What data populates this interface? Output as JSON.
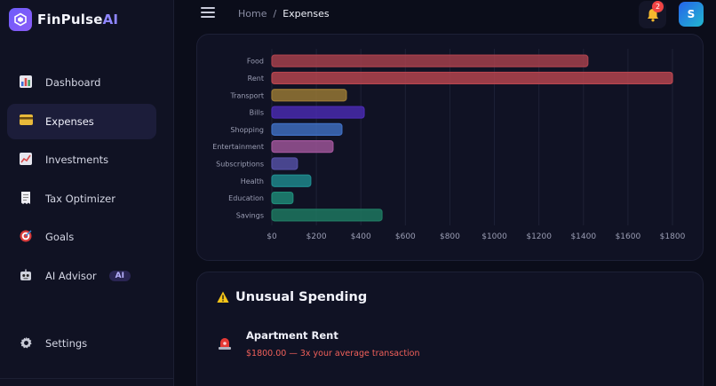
{
  "brand": {
    "name": "FinPulse",
    "suffix": "AI"
  },
  "sidebar": {
    "items": [
      {
        "label": "Dashboard",
        "icon": "bar-chart-icon"
      },
      {
        "label": "Expenses",
        "icon": "credit-card-icon",
        "active": true
      },
      {
        "label": "Investments",
        "icon": "trend-up-icon"
      },
      {
        "label": "Tax Optimizer",
        "icon": "receipt-icon"
      },
      {
        "label": "Goals",
        "icon": "target-icon"
      },
      {
        "label": "AI Advisor",
        "icon": "robot-icon",
        "badge": "AI"
      }
    ],
    "settings_label": "Settings"
  },
  "header": {
    "breadcrumb_home": "Home",
    "breadcrumb_sep": "/",
    "breadcrumb_current": "Expenses",
    "notification_count": "2",
    "avatar_initial": "S"
  },
  "chart_data": {
    "type": "bar",
    "orientation": "horizontal",
    "categories": [
      "Food",
      "Rent",
      "Transport",
      "Bills",
      "Shopping",
      "Entertainment",
      "Subscriptions",
      "Health",
      "Education",
      "Savings"
    ],
    "values": [
      1420,
      1800,
      335,
      415,
      315,
      275,
      115,
      175,
      95,
      495
    ],
    "colors": [
      "#a9414d",
      "#b9464f",
      "#9b7a34",
      "#4b2bb2",
      "#3f6fc2",
      "#a0559a",
      "#5651a6",
      "#1f8a8d",
      "#1f8a78",
      "#1f7a62"
    ],
    "x_ticks": [
      "$0",
      "$200",
      "$400",
      "$600",
      "$800",
      "$1000",
      "$1200",
      "$1400",
      "$1600",
      "$1800"
    ],
    "xlim": [
      0,
      1800
    ],
    "grid": true,
    "legend": "none"
  },
  "unusual": {
    "title": "Unusual Spending",
    "alerts": [
      {
        "title": "Apartment Rent",
        "description": "$1800.00 — 3x your average transaction"
      }
    ]
  }
}
